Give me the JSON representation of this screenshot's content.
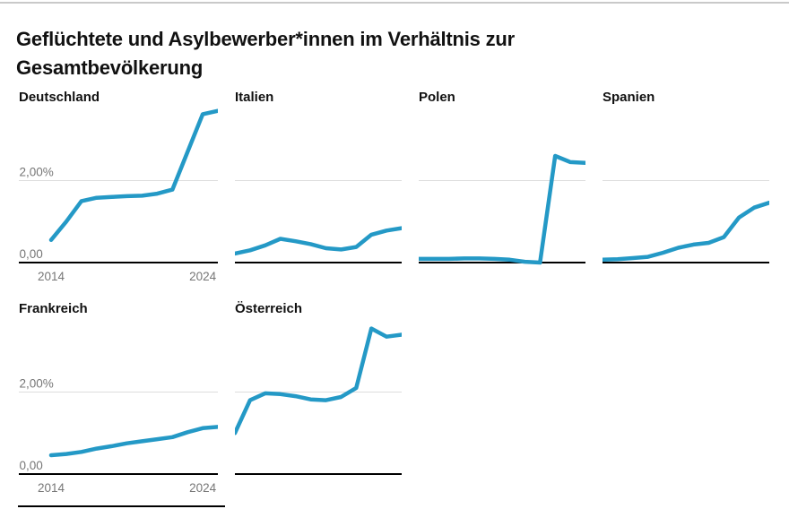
{
  "title": "Geflüchtete und Asylbewerber*innen im Verhältnis zur Gesamtbevölkerung",
  "chart_data": {
    "type": "line",
    "layout": "small-multiples-4col",
    "title": "Geflüchtete und Asylbewerber*innen im Verhältnis zur Gesamtbevölkerung",
    "x": [
      2014,
      2015,
      2016,
      2017,
      2018,
      2019,
      2020,
      2021,
      2022,
      2023,
      2024,
      2025
    ],
    "x_ticks": [
      {
        "year": 2014,
        "label": "2014"
      },
      {
        "year": 2024,
        "label": "2024"
      }
    ],
    "y_ticks": [
      {
        "value": 2,
        "label": "2,00%"
      },
      {
        "value": 0,
        "label": "0,00"
      }
    ],
    "ylim": [
      0,
      3.7
    ],
    "grid": "horizontal-gridline-at-2-percent",
    "legend": "none",
    "line_color": "#2499c6",
    "series": [
      {
        "name": "Deutschland",
        "values": [
          0.55,
          1.0,
          1.5,
          1.58,
          1.6,
          1.62,
          1.63,
          1.68,
          1.78,
          2.7,
          3.62,
          3.7
        ]
      },
      {
        "name": "Italien",
        "values": [
          0.22,
          0.3,
          0.42,
          0.58,
          0.52,
          0.45,
          0.35,
          0.32,
          0.38,
          0.68,
          0.78,
          0.84
        ]
      },
      {
        "name": "Polen",
        "values": [
          0.09,
          0.09,
          0.09,
          0.1,
          0.1,
          0.09,
          0.07,
          0.02,
          0.0,
          2.6,
          2.45,
          2.43
        ]
      },
      {
        "name": "Spanien",
        "values": [
          0.07,
          0.08,
          0.11,
          0.14,
          0.24,
          0.36,
          0.44,
          0.48,
          0.62,
          1.1,
          1.34,
          1.46
        ]
      },
      {
        "name": "Frankreich",
        "values": [
          0.46,
          0.49,
          0.54,
          0.62,
          0.68,
          0.75,
          0.8,
          0.85,
          0.9,
          1.02,
          1.12,
          1.15
        ]
      },
      {
        "name": "Österreich",
        "values": [
          1.0,
          1.8,
          1.97,
          1.95,
          1.9,
          1.82,
          1.8,
          1.88,
          2.1,
          3.55,
          3.35,
          3.4
        ]
      }
    ]
  },
  "decorations": {
    "top_rule_color": "#c9c9c9",
    "axis_color": "#000000",
    "gridline_color": "#dddddd",
    "tick_label_color": "#767676"
  }
}
